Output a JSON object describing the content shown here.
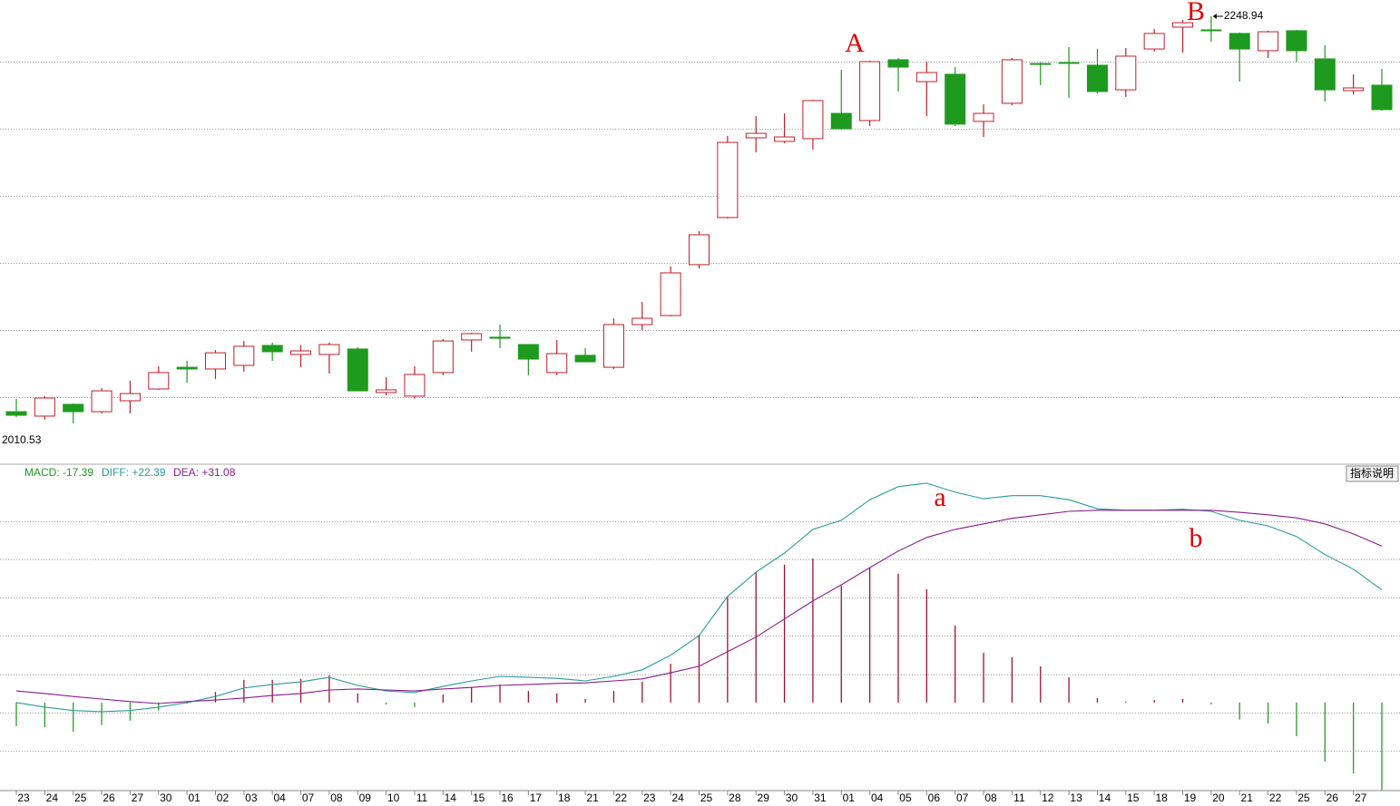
{
  "chart_data": [
    {
      "type": "candlestick",
      "categories": [
        "23",
        "24",
        "25",
        "26",
        "27",
        "30",
        "01",
        "02",
        "03",
        "04",
        "07",
        "08",
        "09",
        "10",
        "11",
        "14",
        "15",
        "16",
        "17",
        "18",
        "21",
        "22",
        "23",
        "24",
        "25",
        "28",
        "29",
        "30",
        "31",
        "01",
        "04",
        "05",
        "06",
        "07",
        "08",
        "11",
        "12",
        "13",
        "14",
        "15",
        "18",
        "19",
        "20",
        "21",
        "22",
        "25",
        "26",
        "27",
        null
      ],
      "open": [
        2017.4,
        2014.8,
        2021.7,
        2017.4,
        2023.8,
        2030.7,
        2043.4,
        2042.4,
        2044.5,
        2056.2,
        2050.9,
        2050.9,
        2054.1,
        2028.6,
        2026.5,
        2040.3,
        2059.4,
        2061.0,
        2056.7,
        2040.3,
        2050.4,
        2043.4,
        2068.4,
        2073.7,
        2103.5,
        2131.1,
        2177.8,
        2175.7,
        2177.3,
        2192.1,
        2187.9,
        2223.5,
        2210.7,
        2215.0,
        2187.4,
        2198.0,
        2221.3,
        2221.9,
        2220.3,
        2205.9,
        2229.8,
        2242.6,
        2241.0,
        2238.9,
        2228.8,
        2240.5,
        2224.0,
        2205.4,
        2208.6
      ],
      "high": [
        2024.9,
        2026.5,
        2022.2,
        2031.2,
        2035.5,
        2044.0,
        2047.2,
        2053.5,
        2058.8,
        2057.8,
        2056.2,
        2057.8,
        2055.1,
        2037.6,
        2044.0,
        2059.9,
        2063.6,
        2068.4,
        2056.2,
        2059.4,
        2054.6,
        2072.1,
        2081.7,
        2102.4,
        2123.1,
        2178.9,
        2190.5,
        2192.1,
        2200.1,
        2217.6,
        2222.9,
        2224.5,
        2222.4,
        2219.2,
        2197.4,
        2224.5,
        2221.9,
        2230.9,
        2229.8,
        2230.4,
        2241.5,
        2246.8,
        2248.94,
        2239.4,
        2240.5,
        2241.0,
        2232.0,
        2215.0,
        2218.1
      ],
      "low": [
        2014.2,
        2012.7,
        2010.53,
        2016.4,
        2016.4,
        2030.2,
        2034.4,
        2036.5,
        2040.8,
        2047.2,
        2043.4,
        2039.7,
        2029.6,
        2027.0,
        2024.9,
        2038.7,
        2052.5,
        2054.6,
        2038.7,
        2038.7,
        2046.6,
        2042.4,
        2065.2,
        2073.2,
        2101.3,
        2130.5,
        2169.3,
        2174.6,
        2170.9,
        2182.6,
        2184.7,
        2204.9,
        2190.5,
        2184.7,
        2178.3,
        2196.9,
        2208.6,
        2201.2,
        2203.8,
        2201.7,
        2228.2,
        2227.7,
        2234.1,
        2210.7,
        2224.5,
        2222.4,
        2199.0,
        2203.3,
        2193.7
      ],
      "close": [
        2015.3,
        2025.4,
        2017.4,
        2029.6,
        2028.0,
        2040.3,
        2042.4,
        2051.9,
        2055.7,
        2052.5,
        2053.0,
        2056.7,
        2029.6,
        2030.2,
        2039.2,
        2058.8,
        2063.1,
        2060.4,
        2048.2,
        2051.4,
        2046.6,
        2068.4,
        2072.1,
        2098.7,
        2121.0,
        2175.1,
        2180.4,
        2178.3,
        2199.6,
        2183.1,
        2222.4,
        2219.2,
        2216.0,
        2185.8,
        2192.1,
        2223.5,
        2220.8,
        2221.9,
        2204.9,
        2225.6,
        2238.9,
        2245.2,
        2240.5,
        2229.8,
        2239.9,
        2228.8,
        2205.9,
        2207.0,
        2194.3
      ],
      "up_color": "#c0202a",
      "down_color": "#1e9a1e",
      "ylim": [
        1987.7,
        2258.5
      ],
      "ygrid": [
        2222.4,
        2183.1,
        2143.8,
        2104.5,
        2065.2,
        2025.9
      ],
      "max_label": 2248.94,
      "min_label": 2010.53,
      "annotations": [
        "A",
        "B"
      ]
    },
    {
      "type": "macd",
      "legend": [
        "MACD: -17.39",
        "DIFF: +22.39",
        "DEA: +31.08"
      ],
      "button": "指标说明",
      "series": [
        {
          "color": "#1e9a1e",
          "values": [
            -4.7,
            -4.9,
            -5.8,
            -4.5,
            -3.6,
            -1.6,
            -0.2,
            2.1,
            4.5,
            4.5,
            4.7,
            5.4,
            1.8,
            -0.4,
            -0.9,
            1.6,
            3.0,
            3.6,
            2.3,
            1.8,
            0.7,
            2.3,
            4.1,
            7.7,
            13.5,
            21.1,
            25.9,
            27.4,
            28.6,
            23.2,
            26.8,
            25.6,
            22.5,
            15.3,
            9.9,
            9.0,
            7.2,
            5.0,
            0.9,
            0.2,
            0.5,
            0.7,
            -0.4,
            -3.4,
            -4.2,
            -6.7,
            -11.7,
            -14.1,
            -17.39
          ]
        },
        {
          "color": "#2a9a9a",
          "values": [
            0.0,
            -0.9,
            -1.6,
            -1.8,
            -1.6,
            -0.9,
            0.0,
            1.2,
            2.9,
            3.6,
            4.1,
            5.0,
            3.4,
            2.3,
            2.0,
            3.2,
            4.3,
            5.2,
            5.0,
            4.8,
            4.3,
            5.2,
            6.5,
            9.4,
            13.3,
            21.1,
            25.9,
            29.7,
            34.4,
            36.2,
            40.3,
            42.9,
            43.6,
            41.8,
            40.5,
            41.1,
            41.1,
            40.3,
            38.5,
            38.2,
            38.2,
            38.4,
            38.0,
            36.2,
            35.1,
            33.0,
            29.4,
            26.5,
            22.39
          ]
        },
        {
          "color": "#8b1a8b",
          "values": [
            2.3,
            1.8,
            1.2,
            0.7,
            0.2,
            -0.2,
            0.2,
            0.5,
            0.9,
            1.4,
            1.8,
            2.5,
            2.7,
            2.5,
            2.3,
            2.7,
            3.0,
            3.4,
            3.6,
            3.8,
            3.9,
            4.3,
            4.7,
            5.9,
            7.2,
            10.1,
            13.0,
            16.6,
            20.2,
            23.4,
            26.8,
            30.1,
            32.8,
            34.4,
            35.5,
            36.6,
            37.3,
            38.0,
            38.2,
            38.2,
            38.2,
            38.2,
            38.2,
            37.8,
            37.3,
            36.7,
            35.5,
            33.5,
            31.08
          ]
        }
      ],
      "pos_color": "#a01030",
      "neg_color": "#2a9a2a",
      "ylim": [
        -17.5,
        47
      ],
      "ygrid": [
        36.0,
        28.5,
        20.9,
        13.3,
        5.6,
        -2.0,
        -9.6
      ],
      "annotations": [
        "a",
        "b"
      ]
    }
  ]
}
